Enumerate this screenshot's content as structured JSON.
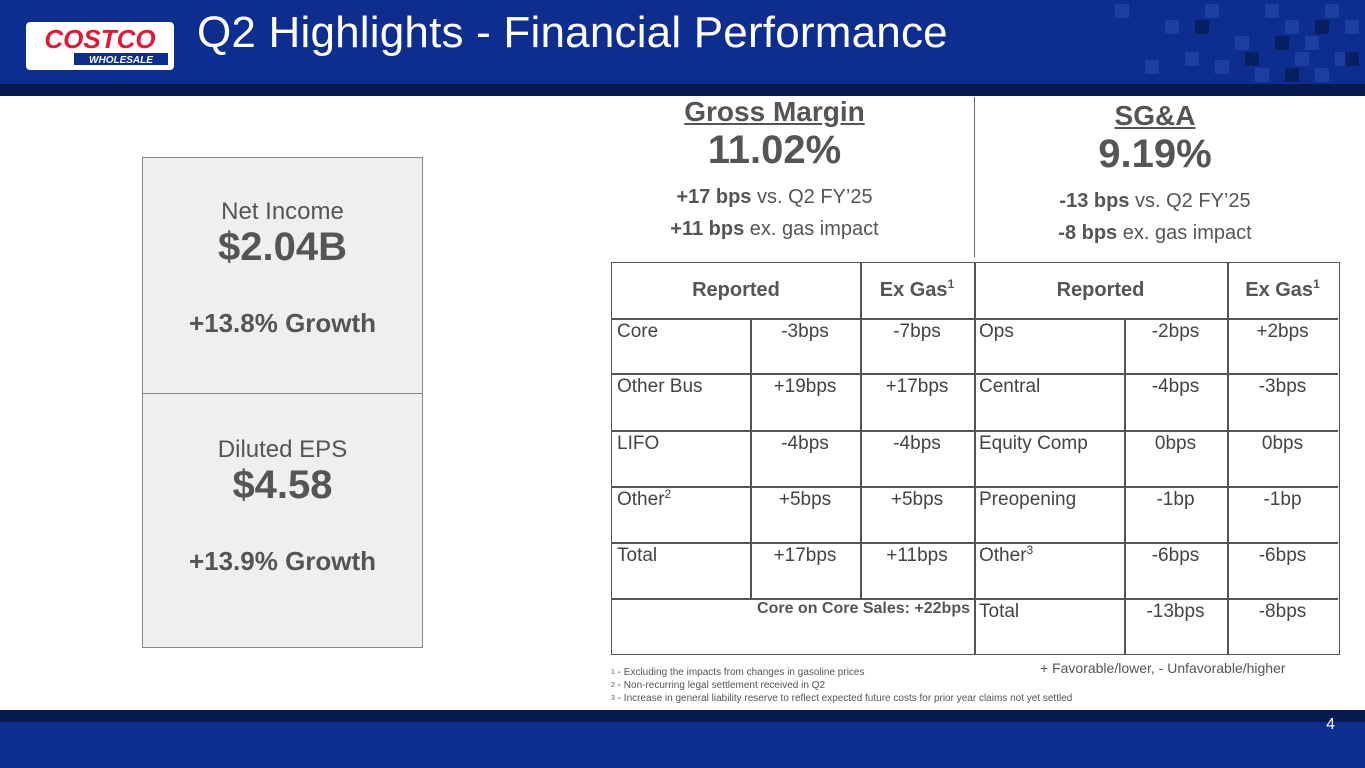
{
  "header": {
    "title": "Q2 Highlights - Financial Performance",
    "logo_text_top": "COSTCO",
    "logo_text_bottom": "WHOLESALE",
    "brand_color": "#0d2d8f",
    "logo_red": "#e31837"
  },
  "panels": [
    {
      "label": "Net Income",
      "value": "$2.04B",
      "growth": "+13.8% Growth"
    },
    {
      "label": "Diluted EPS",
      "value": "$4.58",
      "growth": "+13.9% Growth"
    }
  ],
  "gross_margin": {
    "heading": "Gross Margin",
    "value": "11.02%",
    "line1_bold": "+17 bps",
    "line1_rest": " vs. Q2 FY’25",
    "line2_bold": "+11 bps",
    "line2_rest": " ex. gas impact"
  },
  "sga": {
    "heading": "SG&A",
    "value": "9.19%",
    "line1_bold": "-13 bps",
    "line1_rest": " vs. Q2 FY’25",
    "line2_bold": "-8 bps",
    "line2_rest": " ex. gas impact"
  },
  "table": {
    "gm_reported": "Reported",
    "gm_exgas": "Ex Gas",
    "sga_reported": "Reported",
    "sga_exgas": "Ex Gas",
    "exgas_footnote": "1",
    "gm_rows": [
      {
        "label": "Core",
        "sup": "",
        "reported": "-3bps",
        "exgas": "-7bps"
      },
      {
        "label": "Other Bus",
        "sup": "",
        "reported": "+19bps",
        "exgas": "+17bps"
      },
      {
        "label": "LIFO",
        "sup": "",
        "reported": "-4bps",
        "exgas": "-4bps"
      },
      {
        "label": "Other",
        "sup": "2",
        "reported": "+5bps",
        "exgas": "+5bps"
      },
      {
        "label": "Total",
        "sup": "",
        "reported": "+17bps",
        "exgas": "+11bps"
      }
    ],
    "core_on_core": "Core on Core Sales: +22bps",
    "sga_rows": [
      {
        "label": "Ops",
        "sup": "",
        "reported": "-2bps",
        "exgas": "+2bps"
      },
      {
        "label": "Central",
        "sup": "",
        "reported": "-4bps",
        "exgas": "-3bps"
      },
      {
        "label": "Equity Comp",
        "sup": "",
        "reported": "0bps",
        "exgas": "0bps"
      },
      {
        "label": "Preopening",
        "sup": "",
        "reported": "-1bp",
        "exgas": "-1bp"
      },
      {
        "label": "Other",
        "sup": "3",
        "reported": "-6bps",
        "exgas": "-6bps"
      },
      {
        "label": "Total",
        "sup": "",
        "reported": "-13bps",
        "exgas": "-8bps"
      }
    ]
  },
  "footnotes": [
    {
      "num": "1",
      "text": " - Excluding the impacts from changes in gasoline prices"
    },
    {
      "num": "2",
      "text": " - Non-recurring legal settlement received in Q2"
    },
    {
      "num": "3",
      "text": " - Increase in general liability reserve to reflect expected future costs for prior year claims not yet settled"
    }
  ],
  "legend": "+  Favorable/lower, -  Unfavorable/higher",
  "page_number": "4"
}
